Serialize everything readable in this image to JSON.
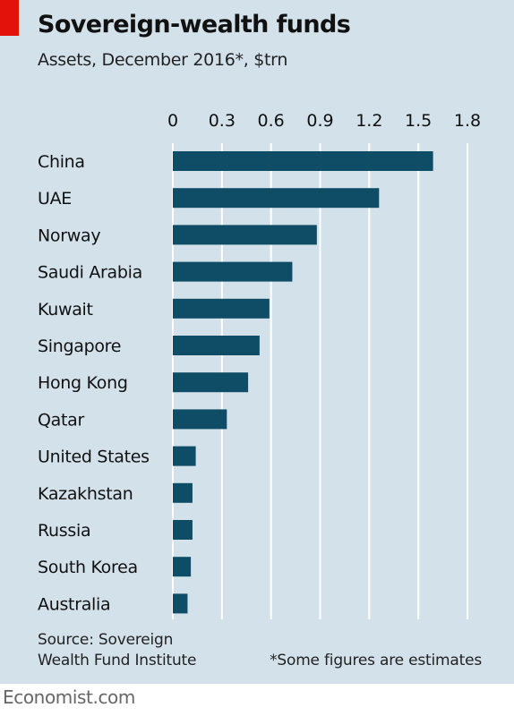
{
  "chart_data": {
    "type": "bar",
    "orientation": "horizontal",
    "title": "Sovereign-wealth funds",
    "subtitle": "Assets, December 2016*, $trn",
    "categories": [
      "China",
      "UAE",
      "Norway",
      "Saudi Arabia",
      "Kuwait",
      "Singapore",
      "Hong Kong",
      "Qatar",
      "United States",
      "Kazakhstan",
      "Russia",
      "South Korea",
      "Australia"
    ],
    "values": [
      1.59,
      1.26,
      0.88,
      0.73,
      0.59,
      0.53,
      0.46,
      0.33,
      0.14,
      0.12,
      0.12,
      0.11,
      0.09
    ],
    "xlim": [
      0,
      1.8
    ],
    "xticks": [
      "0",
      "0.3",
      "0.6",
      "0.9",
      "1.2",
      "1.5",
      "1.8"
    ],
    "tick_position": "top",
    "grid": true,
    "bar_color": "#0f4c66",
    "background_color": "#d3e1ea",
    "accent_color": "#e3120b"
  },
  "source": [
    "Source: Sovereign",
    "Wealth Fund Institute"
  ],
  "note": "*Some figures are estimates",
  "brand": "Economist.com"
}
